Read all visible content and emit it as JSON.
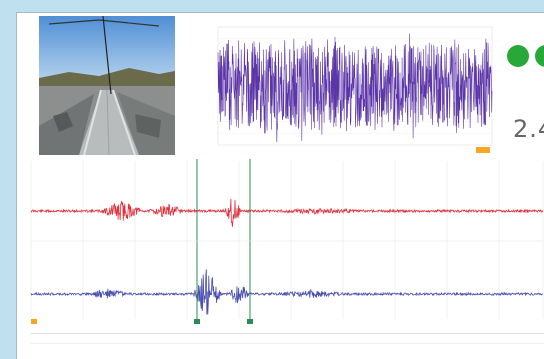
{
  "camera": {
    "icon": "camera-feed-image"
  },
  "mini_chart": {
    "title": "",
    "y_ticks": [
      "",
      "",
      "",
      "",
      "",
      "",
      "",
      "",
      "",
      ""
    ],
    "x_ticks": [
      "",
      "",
      "",
      "",
      "",
      "",
      "",
      ""
    ],
    "line_color": "#5c35a8"
  },
  "status": {
    "indicator_label": "",
    "value_label": "",
    "value": "2.4",
    "ok_color": "#29a83a"
  },
  "waveforms": {
    "top_color": "#e0303a",
    "bottom_color": "#4a4fb0",
    "marker_color": "#2e8b57",
    "cursor_color": "#f5a623",
    "x_ticks": [
      "",
      "",
      "",
      "",
      "",
      ""
    ]
  },
  "table": {
    "headers": [
      "",
      "",
      "",
      "",
      "",
      "",
      "",
      "",
      ""
    ],
    "rows": [
      [
        "",
        "",
        "",
        "",
        "",
        "",
        "",
        "",
        ""
      ],
      [
        "",
        "",
        "",
        "",
        "",
        "",
        "",
        "",
        ""
      ]
    ]
  }
}
